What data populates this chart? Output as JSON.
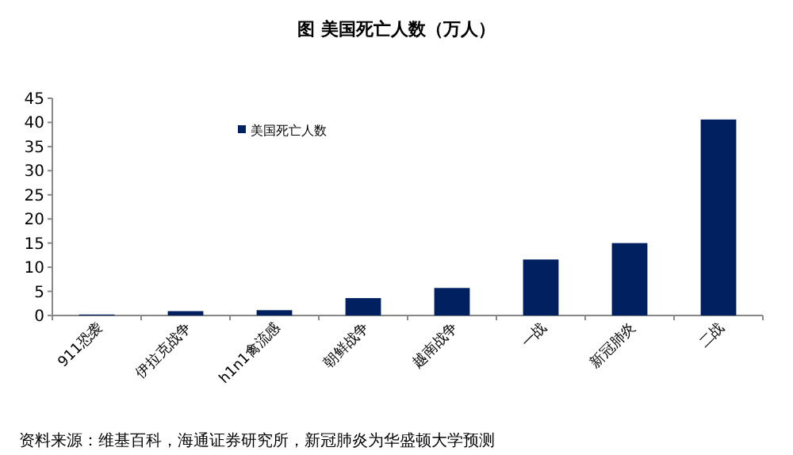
{
  "chart_data": {
    "type": "bar",
    "title": "图  美国死亡人数（万人）",
    "categories": [
      "911恐袭",
      "伊拉克战争",
      "h1n1禽流感",
      "朝鲜战争",
      "越南战争",
      "一战",
      "新冠肺炎",
      "二战"
    ],
    "series": [
      {
        "name": "美国死亡人数",
        "color": "#002060",
        "values": [
          0.2,
          0.9,
          1.1,
          3.6,
          5.7,
          11.6,
          15.0,
          40.6
        ]
      }
    ],
    "ylim": [
      0,
      45
    ],
    "yticks": [
      0,
      5,
      10,
      15,
      20,
      25,
      30,
      35,
      40,
      45
    ],
    "legend": "top",
    "annotations": [
      "资料来源：维基百科，海通证券研究所，新冠肺炎为华盛顿大学预测"
    ]
  }
}
